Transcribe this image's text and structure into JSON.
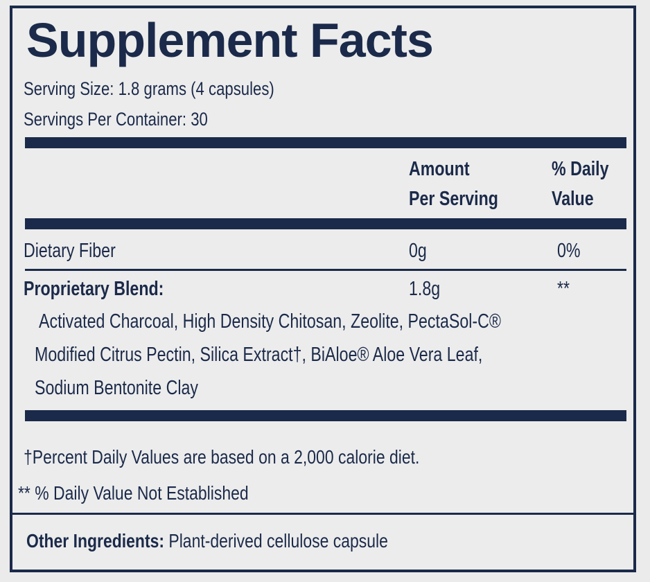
{
  "label": {
    "title": "Supplement Facts",
    "serving_size": "Serving Size: 1.8 grams (4 capsules)",
    "servings_per_container": "Servings Per Container: 30",
    "header": {
      "amount_line1": "Amount",
      "amount_line2": "Per Serving",
      "dv_line1": "% Daily",
      "dv_line2": "Value"
    },
    "rows": [
      {
        "name": "Dietary Fiber",
        "amount": "0g",
        "dv": "0%"
      },
      {
        "name": "Proprietary Blend:",
        "amount": "1.8g",
        "dv": "**"
      }
    ],
    "blend_lines": [
      "Activated Charcoal, High Density Chitosan, Zeolite, PectaSol-C®",
      "Modified Citrus Pectin, Silica Extract†, BiAloe® Aloe Vera Leaf,",
      "Sodium Bentonite Clay"
    ],
    "footnote_percent": "†Percent Daily Values are based on a 2,000 calorie diet.",
    "footnote_not_established": "** % Daily Value Not Established",
    "other_label": "Other Ingredients:",
    "other_text": " Plant-derived cellulose capsule"
  },
  "colors": {
    "ink": "#1b2a4a",
    "background": "#ebebeb"
  }
}
